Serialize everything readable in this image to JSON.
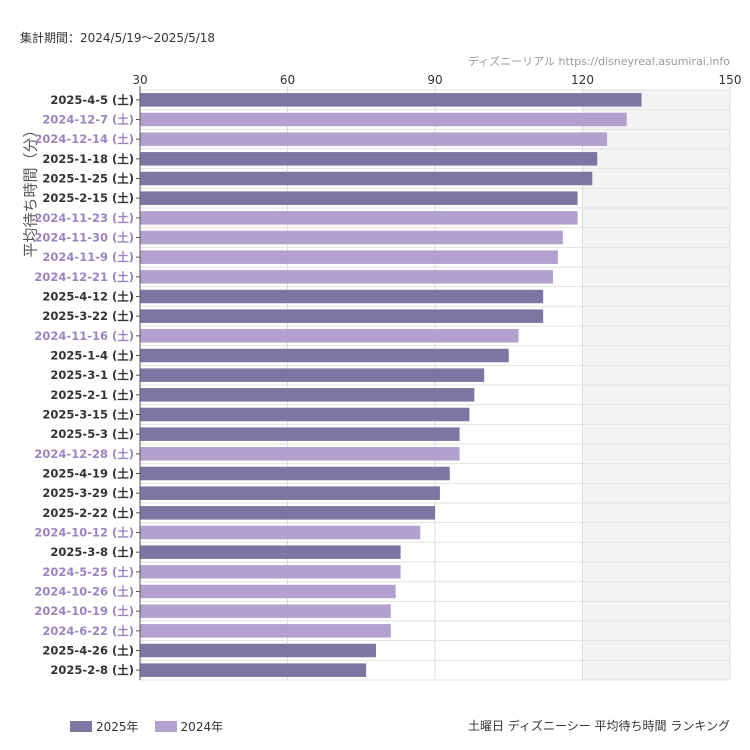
{
  "period_text": "集計期間：2024/5/19～2025/5/18",
  "source_text": "ディズニーリアル https://disneyreal.asumirai.info",
  "colors": {
    "2025": "#7b76a2",
    "2024": "#b3a0cf",
    "label_2025": "#333333",
    "label_2024": "#9b85c0"
  },
  "chart_data": {
    "type": "bar",
    "orientation": "horizontal",
    "ylabel": "平均待ち時間（分）",
    "xlim": [
      30,
      150
    ],
    "xticks": [
      30,
      60,
      90,
      120,
      150
    ],
    "grid": true,
    "shaded_range": [
      120,
      150
    ],
    "legend_position": "bottom-left",
    "footer_title": "土曜日 ディズニーシー 平均待ち時間 ランキング",
    "legend": [
      {
        "label": "2025年",
        "year": "2025"
      },
      {
        "label": "2024年",
        "year": "2024"
      }
    ],
    "bars": [
      {
        "label": "2025-4-5 (土)",
        "value": 132,
        "year": "2025"
      },
      {
        "label": "2024-12-7 (土)",
        "value": 129,
        "year": "2024"
      },
      {
        "label": "2024-12-14 (土)",
        "value": 125,
        "year": "2024"
      },
      {
        "label": "2025-1-18 (土)",
        "value": 123,
        "year": "2025"
      },
      {
        "label": "2025-1-25 (土)",
        "value": 122,
        "year": "2025"
      },
      {
        "label": "2025-2-15 (土)",
        "value": 119,
        "year": "2025"
      },
      {
        "label": "2024-11-23 (土)",
        "value": 119,
        "year": "2024"
      },
      {
        "label": "2024-11-30 (土)",
        "value": 116,
        "year": "2024"
      },
      {
        "label": "2024-11-9 (土)",
        "value": 115,
        "year": "2024"
      },
      {
        "label": "2024-12-21 (土)",
        "value": 114,
        "year": "2024"
      },
      {
        "label": "2025-4-12 (土)",
        "value": 112,
        "year": "2025"
      },
      {
        "label": "2025-3-22 (土)",
        "value": 112,
        "year": "2025"
      },
      {
        "label": "2024-11-16 (土)",
        "value": 107,
        "year": "2024"
      },
      {
        "label": "2025-1-4 (土)",
        "value": 105,
        "year": "2025"
      },
      {
        "label": "2025-3-1 (土)",
        "value": 100,
        "year": "2025"
      },
      {
        "label": "2025-2-1 (土)",
        "value": 98,
        "year": "2025"
      },
      {
        "label": "2025-3-15 (土)",
        "value": 97,
        "year": "2025"
      },
      {
        "label": "2025-5-3 (土)",
        "value": 95,
        "year": "2025"
      },
      {
        "label": "2024-12-28 (土)",
        "value": 95,
        "year": "2024"
      },
      {
        "label": "2025-4-19 (土)",
        "value": 93,
        "year": "2025"
      },
      {
        "label": "2025-3-29 (土)",
        "value": 91,
        "year": "2025"
      },
      {
        "label": "2025-2-22 (土)",
        "value": 90,
        "year": "2025"
      },
      {
        "label": "2024-10-12 (土)",
        "value": 87,
        "year": "2024"
      },
      {
        "label": "2025-3-8 (土)",
        "value": 83,
        "year": "2025"
      },
      {
        "label": "2024-5-25 (土)",
        "value": 83,
        "year": "2024"
      },
      {
        "label": "2024-10-26 (土)",
        "value": 82,
        "year": "2024"
      },
      {
        "label": "2024-10-19 (土)",
        "value": 81,
        "year": "2024"
      },
      {
        "label": "2024-6-22 (土)",
        "value": 81,
        "year": "2024"
      },
      {
        "label": "2025-4-26 (土)",
        "value": 78,
        "year": "2025"
      },
      {
        "label": "2025-2-8 (土)",
        "value": 76,
        "year": "2025"
      }
    ]
  }
}
